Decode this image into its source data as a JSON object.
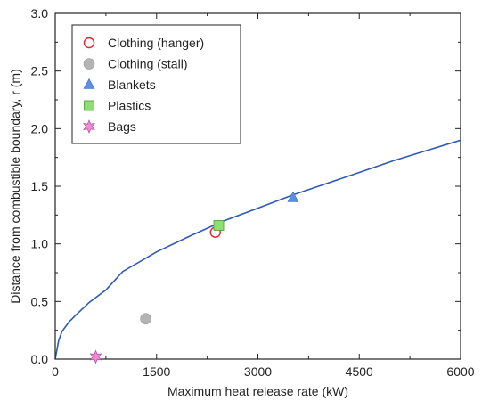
{
  "chart_data": {
    "type": "scatter",
    "xlabel": "Maximum heat release rate (kW)",
    "ylabel": "Distance from combustible boundary, r (m)",
    "xlim": [
      0,
      6000
    ],
    "ylim": [
      0,
      3.0
    ],
    "x_ticks": [
      "0",
      "1500",
      "3000",
      "4500",
      "6000"
    ],
    "y_ticks": [
      "0.0",
      "0.5",
      "1.0",
      "1.5",
      "2.0",
      "2.5",
      "3.0"
    ],
    "grid": false,
    "legend_position": "top-left",
    "series": [
      {
        "name": "Clothing (hanger)",
        "marker": "open-circle",
        "color": "#e8242b",
        "points": [
          [
            2370,
            1.1
          ]
        ]
      },
      {
        "name": "Clothing (stall)",
        "marker": "circle",
        "color": "#b4b4b4",
        "points": [
          [
            1340,
            0.35
          ]
        ]
      },
      {
        "name": "Blankets",
        "marker": "triangle",
        "color": "#5b8fe0",
        "points": [
          [
            3520,
            1.4
          ]
        ]
      },
      {
        "name": "Plastics",
        "marker": "square",
        "color": "#8ee06c",
        "points": [
          [
            2420,
            1.16
          ]
        ]
      },
      {
        "name": "Bags",
        "marker": "star",
        "color": "#f08ad6",
        "points": [
          [
            600,
            0.02
          ]
        ]
      }
    ],
    "fit_curve": {
      "color": "#2c5ab4",
      "x": [
        0,
        50,
        100,
        200,
        300,
        500,
        750,
        1000,
        1500,
        2000,
        2500,
        3000,
        3500,
        4000,
        4500,
        5000,
        5500,
        6000
      ],
      "y": [
        0.0,
        0.16,
        0.24,
        0.32,
        0.38,
        0.49,
        0.6,
        0.76,
        0.93,
        1.07,
        1.2,
        1.31,
        1.42,
        1.52,
        1.62,
        1.72,
        1.81,
        1.9
      ]
    }
  }
}
